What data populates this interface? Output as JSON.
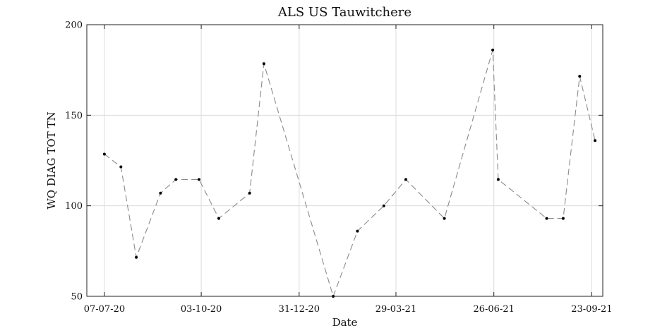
{
  "chart_data": {
    "type": "line",
    "title": "ALS US Tauwitchere",
    "xlabel": "Date",
    "ylabel": "WQ DIAG TOT TN",
    "ylim": [
      50,
      200
    ],
    "xlim": [
      "2020-06-21",
      "2021-10-03"
    ],
    "yticks": [
      {
        "value": 50,
        "label": "50"
      },
      {
        "value": 100,
        "label": "100"
      },
      {
        "value": 150,
        "label": "150"
      },
      {
        "value": 200,
        "label": "200"
      }
    ],
    "xticks": [
      {
        "value": "2020-07-07",
        "label": "07-07-20"
      },
      {
        "value": "2020-10-03",
        "label": "03-10-20"
      },
      {
        "value": "2020-12-31",
        "label": "31-12-20"
      },
      {
        "value": "2021-03-29",
        "label": "29-03-21"
      },
      {
        "value": "2021-06-26",
        "label": "26-06-21"
      },
      {
        "value": "2021-09-23",
        "label": "23-09-21"
      }
    ],
    "grid": true,
    "series": [
      {
        "x": [
          "2020-07-07",
          "2020-07-22",
          "2020-08-05",
          "2020-08-27",
          "2020-09-10",
          "2020-10-01",
          "2020-10-19",
          "2020-11-16",
          "2020-11-29",
          "2021-01-31",
          "2021-02-22",
          "2021-03-18",
          "2021-04-07",
          "2021-05-12",
          "2021-06-25",
          "2021-06-30",
          "2021-08-13",
          "2021-08-28",
          "2021-09-12",
          "2021-09-26"
        ],
        "y": [
          128.5,
          121.5,
          71.5,
          107,
          114.5,
          114.5,
          93,
          107,
          178.5,
          50,
          86,
          100,
          114.5,
          93,
          186,
          114.5,
          93,
          93,
          171.5,
          136
        ]
      }
    ]
  }
}
